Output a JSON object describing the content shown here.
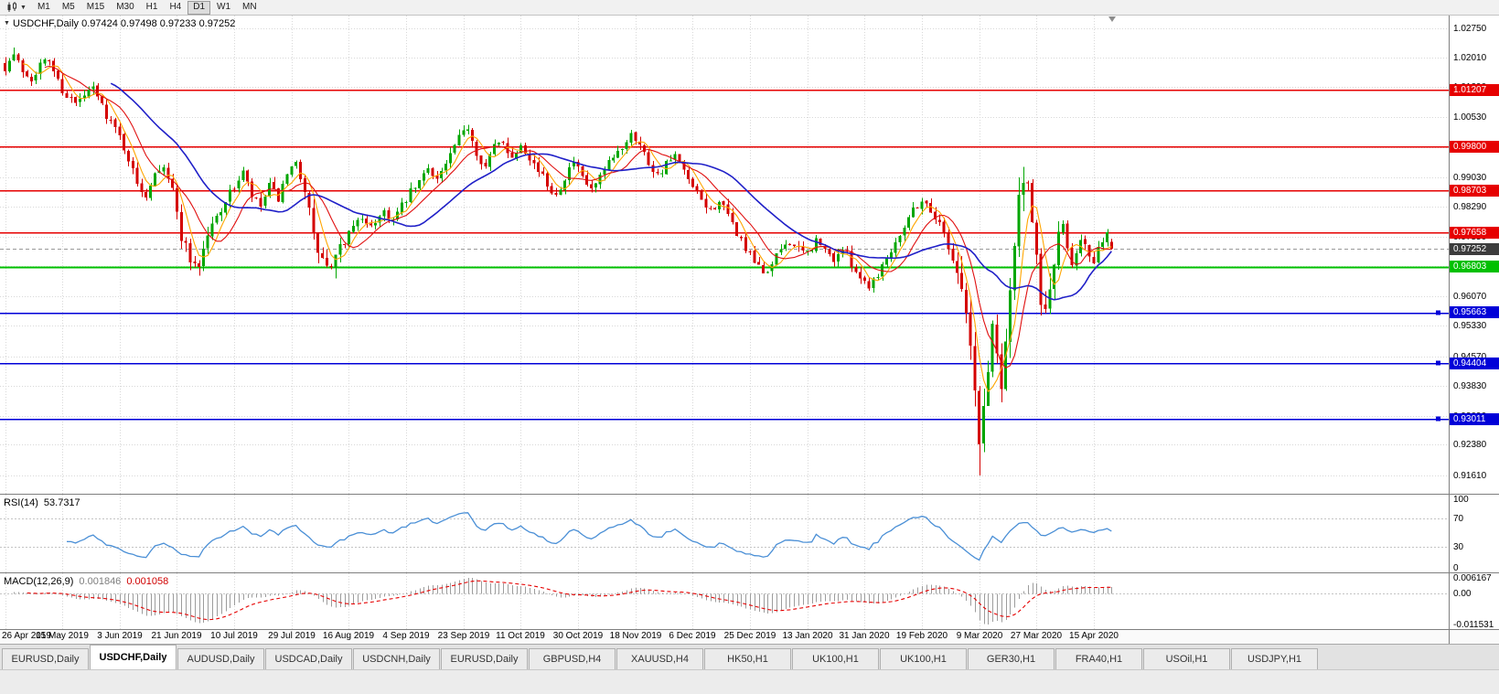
{
  "toolbar": {
    "timeframes": [
      "M1",
      "M5",
      "M15",
      "M30",
      "H1",
      "H4",
      "D1",
      "W1",
      "MN"
    ],
    "active_timeframe": "D1"
  },
  "main_chart": {
    "ohlc_title": "USDCHF,Daily 0.97424 0.97498 0.97233 0.97252",
    "axis_ticks": [
      "1.02750",
      "1.02010",
      "1.01290",
      "1.00530",
      "0.99790",
      "0.99030",
      "0.98290",
      "0.97550",
      "0.96810",
      "0.96070",
      "0.95330",
      "0.94570",
      "0.93830",
      "0.93090",
      "0.92380",
      "0.91610"
    ],
    "hlines": [
      {
        "price": 1.01207,
        "label": "1.01207",
        "color": "#e60000",
        "width": 1.5,
        "handles": false
      },
      {
        "price": 0.998,
        "label": "0.99800",
        "color": "#e60000",
        "width": 1.5,
        "handles": false
      },
      {
        "price": 0.98703,
        "label": "0.98703",
        "color": "#e60000",
        "width": 1.5,
        "handles": false
      },
      {
        "price": 0.97658,
        "label": "0.97658",
        "color": "#e60000",
        "width": 1.5,
        "handles": false
      },
      {
        "price": 0.96803,
        "label": "0.96803",
        "color": "#00c000",
        "width": 2,
        "handles": false
      },
      {
        "price": 0.95663,
        "label": "0.95663",
        "color": "#0000d8",
        "width": 1.5,
        "handles": true
      },
      {
        "price": 0.94404,
        "label": "0.94404",
        "color": "#0000d8",
        "width": 1.5,
        "handles": true
      },
      {
        "price": 0.93011,
        "label": "0.93011",
        "color": "#0000d8",
        "width": 1.5,
        "handles": true
      }
    ],
    "current_price": {
      "price": 0.97252,
      "label": "0.97252",
      "badge_color": "#3c3c3c"
    }
  },
  "rsi": {
    "label": "RSI(14)",
    "value": "53.7317",
    "axis_ticks": [
      "100",
      "70",
      "30",
      "0"
    ],
    "levels": [
      70,
      30
    ],
    "line_color": "#4a8fd6"
  },
  "macd": {
    "label": "MACD(12,26,9)",
    "value_main": "0.001846",
    "value_signal": "0.001058",
    "axis_max": "0.006167",
    "axis_zero": "0.00",
    "axis_min": "-0.011531",
    "bar_color": "#9c9c9c",
    "signal_color": "#e60000"
  },
  "time_axis": {
    "labels": [
      "26 Apr 2019",
      "15 May 2019",
      "3 Jun 2019",
      "21 Jun 2019",
      "10 Jul 2019",
      "29 Jul 2019",
      "16 Aug 2019",
      "4 Sep 2019",
      "23 Sep 2019",
      "11 Oct 2019",
      "30 Oct 2019",
      "18 Nov 2019",
      "6 Dec 2019",
      "25 Dec 2019",
      "13 Jan 2020",
      "31 Jan 2020",
      "19 Feb 2020",
      "9 Mar 2020",
      "27 Mar 2020",
      "15 Apr 2020"
    ]
  },
  "tabs": {
    "active_index": 1,
    "items": [
      "EURUSD,Daily",
      "USDCHF,Daily",
      "AUDUSD,Daily",
      "USDCAD,Daily",
      "USDCNH,Daily",
      "EURUSD,Daily",
      "GBPUSD,H4",
      "XAUUSD,H4",
      "HK50,H1",
      "UK100,H1",
      "UK100,H1",
      "GER30,H1",
      "FRA40,H1",
      "USOil,H1",
      "USDJPY,H1"
    ]
  },
  "chart_data": {
    "type": "candlestick",
    "symbol": "USDCHF",
    "timeframe": "Daily",
    "last_bar": {
      "open": 0.97424,
      "high": 0.97498,
      "low": 0.97233,
      "close": 0.97252
    },
    "price_axis_range": [
      0.9115,
      1.0306
    ],
    "candle_up_color": "#00a600",
    "candle_down_color": "#d40000",
    "levels": {
      "resistance_red": [
        1.01207,
        0.998,
        0.98703,
        0.97658
      ],
      "pivot_green": 0.96803,
      "support_blue": [
        0.95663,
        0.94404,
        0.93011
      ]
    },
    "moving_averages": [
      {
        "period": 5,
        "color": "#ffa500"
      },
      {
        "period": 10,
        "color": "#e01010"
      },
      {
        "period": 25,
        "color": "#2020c8"
      }
    ],
    "indicators": {
      "rsi": {
        "period": 14,
        "current": 53.7317,
        "levels": [
          70,
          30
        ]
      },
      "macd": {
        "fast": 12,
        "slow": 26,
        "signal": 9,
        "current_main": 0.001846,
        "current_signal": 0.001058,
        "axis_max": 0.006167,
        "axis_min": -0.011531
      }
    },
    "extremes": {
      "spike_low": 0.9161,
      "spike_low_day": 221,
      "early_high": 1.0226
    },
    "price_path": [
      [
        0,
        1.0178
      ],
      [
        2,
        1.0208
      ],
      [
        4,
        1.017
      ],
      [
        6,
        1.015
      ],
      [
        8,
        1.0185
      ],
      [
        10,
        1.0195
      ],
      [
        13,
        1.012
      ],
      [
        16,
        1.0085
      ],
      [
        18,
        1.0105
      ],
      [
        20,
        1.0125
      ],
      [
        23,
        1.006
      ],
      [
        26,
        1.0005
      ],
      [
        28,
        0.995
      ],
      [
        30,
        0.9885
      ],
      [
        32,
        0.986
      ],
      [
        34,
        0.992
      ],
      [
        36,
        0.9935
      ],
      [
        38,
        0.987
      ],
      [
        40,
        0.976
      ],
      [
        42,
        0.97
      ],
      [
        44,
        0.9685
      ],
      [
        46,
        0.976
      ],
      [
        48,
        0.9805
      ],
      [
        50,
        0.9845
      ],
      [
        52,
        0.988
      ],
      [
        54,
        0.9915
      ],
      [
        56,
        0.9855
      ],
      [
        58,
        0.983
      ],
      [
        60,
        0.988
      ],
      [
        62,
        0.985
      ],
      [
        64,
        0.9905
      ],
      [
        66,
        0.9935
      ],
      [
        68,
        0.988
      ],
      [
        70,
        0.975
      ],
      [
        72,
        0.9695
      ],
      [
        74,
        0.967
      ],
      [
        76,
        0.972
      ],
      [
        78,
        0.9765
      ],
      [
        80,
        0.9805
      ],
      [
        82,
        0.978
      ],
      [
        84,
        0.9795
      ],
      [
        86,
        0.982
      ],
      [
        88,
        0.9795
      ],
      [
        90,
        0.983
      ],
      [
        92,
        0.9865
      ],
      [
        94,
        0.989
      ],
      [
        96,
        0.993
      ],
      [
        98,
        0.99
      ],
      [
        100,
        0.9935
      ],
      [
        102,
        0.998
      ],
      [
        104,
        1.0015
      ],
      [
        105,
        1.003
      ],
      [
        107,
        0.9965
      ],
      [
        109,
        0.993
      ],
      [
        111,
        0.998
      ],
      [
        113,
        0.9995
      ],
      [
        115,
        0.995
      ],
      [
        117,
        0.999
      ],
      [
        119,
        0.9955
      ],
      [
        121,
        0.992
      ],
      [
        123,
        0.9885
      ],
      [
        125,
        0.986
      ],
      [
        127,
        0.9905
      ],
      [
        129,
        0.994
      ],
      [
        131,
        0.99
      ],
      [
        133,
        0.987
      ],
      [
        135,
        0.99
      ],
      [
        137,
        0.9935
      ],
      [
        139,
        0.9965
      ],
      [
        141,
        0.9995
      ],
      [
        142,
        1.002
      ],
      [
        144,
        0.9985
      ],
      [
        146,
        0.994
      ],
      [
        148,
        0.991
      ],
      [
        150,
        0.9935
      ],
      [
        152,
        0.9955
      ],
      [
        154,
        0.9915
      ],
      [
        156,
        0.9875
      ],
      [
        158,
        0.9845
      ],
      [
        160,
        0.982
      ],
      [
        162,
        0.9845
      ],
      [
        164,
        0.9805
      ],
      [
        166,
        0.9765
      ],
      [
        168,
        0.9725
      ],
      [
        170,
        0.969
      ],
      [
        172,
        0.9665
      ],
      [
        174,
        0.9685
      ],
      [
        176,
        0.9725
      ],
      [
        178,
        0.9745
      ],
      [
        180,
        0.972
      ],
      [
        182,
        0.9715
      ],
      [
        184,
        0.9745
      ],
      [
        186,
        0.972
      ],
      [
        188,
        0.97
      ],
      [
        190,
        0.9725
      ],
      [
        192,
        0.969
      ],
      [
        194,
        0.9655
      ],
      [
        196,
        0.9635
      ],
      [
        198,
        0.9665
      ],
      [
        200,
        0.9705
      ],
      [
        202,
        0.9745
      ],
      [
        204,
        0.9785
      ],
      [
        206,
        0.9825
      ],
      [
        208,
        0.9845
      ],
      [
        209,
        0.9835
      ],
      [
        211,
        0.9805
      ],
      [
        213,
        0.9765
      ],
      [
        215,
        0.97
      ],
      [
        217,
        0.9635
      ],
      [
        218,
        0.956
      ],
      [
        219,
        0.948
      ],
      [
        220,
        0.936
      ],
      [
        221,
        0.924
      ],
      [
        222,
        0.933
      ],
      [
        223,
        0.943
      ],
      [
        224,
        0.954
      ],
      [
        225,
        0.946
      ],
      [
        226,
        0.94
      ],
      [
        227,
        0.951
      ],
      [
        228,
        0.963
      ],
      [
        229,
        0.973
      ],
      [
        230,
        0.984
      ],
      [
        231,
        0.9905
      ],
      [
        232,
        0.9855
      ],
      [
        233,
        0.9775
      ],
      [
        234,
        0.969
      ],
      [
        235,
        0.961
      ],
      [
        236,
        0.9555
      ],
      [
        237,
        0.963
      ],
      [
        238,
        0.9695
      ],
      [
        239,
        0.974
      ],
      [
        240,
        0.977
      ],
      [
        241,
        0.973
      ],
      [
        242,
        0.969
      ],
      [
        243,
        0.972
      ],
      [
        244,
        0.9755
      ],
      [
        245,
        0.9735
      ],
      [
        246,
        0.97
      ],
      [
        247,
        0.9685
      ],
      [
        248,
        0.972
      ],
      [
        249,
        0.975
      ],
      [
        250,
        0.9765
      ],
      [
        251,
        0.9725
      ]
    ]
  }
}
